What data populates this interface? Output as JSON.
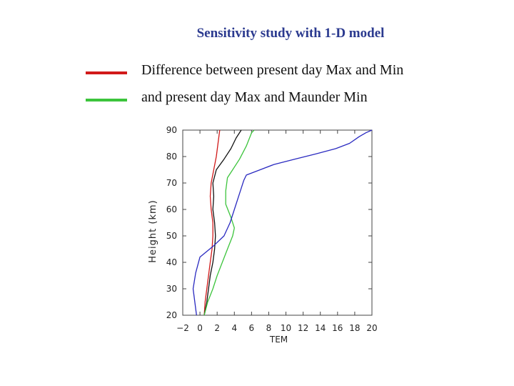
{
  "slide": {
    "title": "Sensitivity study with 1-D model"
  },
  "legend": [
    {
      "label": "Difference between present day Max and Min",
      "color": "#d11a1a"
    },
    {
      "label": " and present day Max and Maunder Min",
      "color": "#3cc43c"
    }
  ],
  "chart_data": {
    "type": "line",
    "title": "",
    "xlabel": "TEM",
    "ylabel": "Height (km)",
    "xlim": [
      -2,
      20
    ],
    "ylim": [
      20,
      90
    ],
    "xticks": [
      -2,
      0,
      2,
      4,
      6,
      8,
      10,
      12,
      14,
      16,
      18,
      20
    ],
    "yticks": [
      20,
      30,
      40,
      50,
      60,
      70,
      80,
      90
    ],
    "series": [
      {
        "color": "#d11a1a",
        "points": [
          [
            0.5,
            20
          ],
          [
            0.6,
            25
          ],
          [
            0.8,
            30
          ],
          [
            1.0,
            35
          ],
          [
            1.2,
            40
          ],
          [
            1.4,
            45
          ],
          [
            1.5,
            50
          ],
          [
            1.5,
            55
          ],
          [
            1.3,
            60
          ],
          [
            1.2,
            65
          ],
          [
            1.3,
            70
          ],
          [
            1.6,
            75
          ],
          [
            1.9,
            80
          ],
          [
            2.1,
            85
          ],
          [
            2.3,
            90
          ]
        ]
      },
      {
        "color": "#111111",
        "points": [
          [
            0.5,
            20
          ],
          [
            0.8,
            25
          ],
          [
            1.0,
            30
          ],
          [
            1.2,
            35
          ],
          [
            1.5,
            40
          ],
          [
            1.7,
            45
          ],
          [
            1.8,
            50
          ],
          [
            1.7,
            55
          ],
          [
            1.5,
            60
          ],
          [
            1.6,
            65
          ],
          [
            1.5,
            70
          ],
          [
            1.9,
            75
          ],
          [
            2.8,
            79
          ],
          [
            3.6,
            83
          ],
          [
            4.2,
            87
          ],
          [
            4.8,
            90
          ]
        ]
      },
      {
        "color": "#3cc43c",
        "points": [
          [
            0.5,
            20
          ],
          [
            0.9,
            25
          ],
          [
            1.5,
            30
          ],
          [
            2.0,
            35
          ],
          [
            2.6,
            40
          ],
          [
            3.2,
            45
          ],
          [
            3.8,
            50
          ],
          [
            4.0,
            53
          ],
          [
            3.6,
            57
          ],
          [
            3.0,
            62
          ],
          [
            3.0,
            67
          ],
          [
            3.2,
            72
          ],
          [
            3.8,
            75
          ],
          [
            4.6,
            79
          ],
          [
            5.4,
            84
          ],
          [
            6.0,
            89
          ],
          [
            6.3,
            90
          ]
        ]
      },
      {
        "color": "#2a2ac0",
        "points": [
          [
            -0.4,
            20
          ],
          [
            -0.6,
            25
          ],
          [
            -0.8,
            30
          ],
          [
            -0.5,
            36
          ],
          [
            0.0,
            42
          ],
          [
            1.5,
            46
          ],
          [
            2.8,
            50
          ],
          [
            3.5,
            55
          ],
          [
            4.0,
            60
          ],
          [
            4.6,
            66
          ],
          [
            5.1,
            71
          ],
          [
            5.4,
            73
          ],
          [
            7.0,
            75
          ],
          [
            8.6,
            77
          ],
          [
            11.0,
            79
          ],
          [
            13.5,
            81
          ],
          [
            15.8,
            83
          ],
          [
            17.4,
            85
          ],
          [
            18.5,
            87.5
          ],
          [
            19.3,
            89
          ],
          [
            20.0,
            90
          ]
        ]
      }
    ]
  }
}
